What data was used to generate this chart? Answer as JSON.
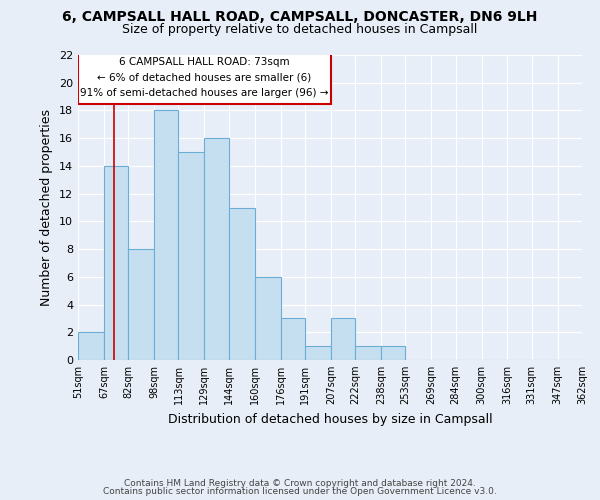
{
  "title": "6, CAMPSALL HALL ROAD, CAMPSALL, DONCASTER, DN6 9LH",
  "subtitle": "Size of property relative to detached houses in Campsall",
  "xlabel": "Distribution of detached houses by size in Campsall",
  "ylabel": "Number of detached properties",
  "bar_edges": [
    51,
    67,
    82,
    98,
    113,
    129,
    144,
    160,
    176,
    191,
    207,
    222,
    238,
    253,
    269,
    284,
    300,
    316,
    331,
    347,
    362
  ],
  "bar_heights": [
    2,
    14,
    8,
    18,
    15,
    16,
    11,
    6,
    3,
    1,
    3,
    1,
    1,
    0,
    0,
    0,
    0,
    0,
    0,
    0
  ],
  "bar_color": "#c5dff0",
  "bar_edgecolor": "#6aaed6",
  "ylim": [
    0,
    22
  ],
  "yticks": [
    0,
    2,
    4,
    6,
    8,
    10,
    12,
    14,
    16,
    18,
    20,
    22
  ],
  "tick_labels": [
    "51sqm",
    "67sqm",
    "82sqm",
    "98sqm",
    "113sqm",
    "129sqm",
    "144sqm",
    "160sqm",
    "176sqm",
    "191sqm",
    "207sqm",
    "222sqm",
    "238sqm",
    "253sqm",
    "269sqm",
    "284sqm",
    "300sqm",
    "316sqm",
    "331sqm",
    "347sqm",
    "362sqm"
  ],
  "ref_line_x": 73,
  "ref_line_color": "#cc0000",
  "annotation_line1": "6 CAMPSALL HALL ROAD: 73sqm",
  "annotation_line2": "← 6% of detached houses are smaller (6)",
  "annotation_line3": "91% of semi-detached houses are larger (96) →",
  "footer_line1": "Contains HM Land Registry data © Crown copyright and database right 2024.",
  "footer_line2": "Contains public sector information licensed under the Open Government Licence v3.0.",
  "background_color": "#e8eef7",
  "grid_color": "#ffffff"
}
